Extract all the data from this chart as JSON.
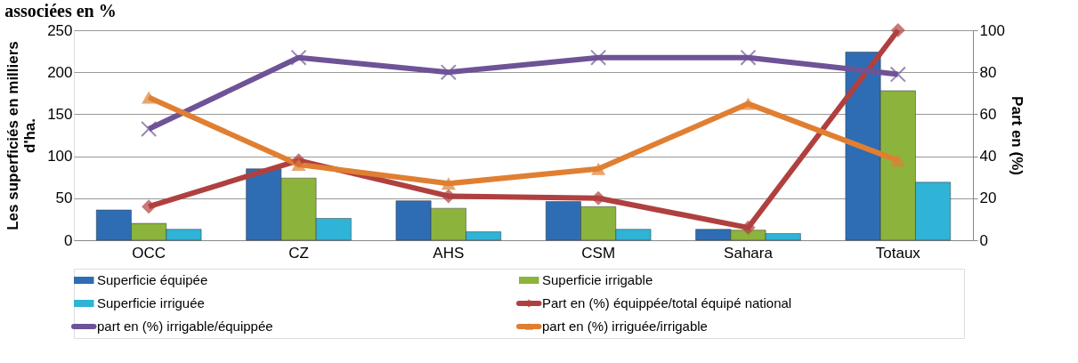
{
  "chart_data": {
    "type": "bar",
    "title": "associées en %",
    "ylabel": "Les superficiés en milliers\nd'ha.",
    "y2label": "Part en (%)",
    "categories": [
      "OCC",
      "CZ",
      "AHS",
      "CSM",
      "Sahara",
      "Totaux"
    ],
    "series": [
      {
        "name": "Superficie équipée",
        "color": "#2e6db4",
        "values": [
          36,
          85,
          47,
          46,
          13,
          224
        ]
      },
      {
        "name": "Superficie irrigable",
        "color": "#8cb43c",
        "values": [
          20,
          74,
          38,
          40,
          12,
          178
        ]
      },
      {
        "name": "Superficie irriguée",
        "color": "#2fb3d6",
        "values": [
          13,
          26,
          10,
          13,
          8,
          69
        ]
      },
      {
        "name": "Part en (%) équippée/total équipé national",
        "type": "line",
        "axis": "y2",
        "marker": "diamond",
        "color": "#b04040",
        "values": [
          16,
          38,
          21,
          20,
          6,
          100
        ]
      },
      {
        "name": "part en (%) irrigable/équippée",
        "type": "line",
        "axis": "y2",
        "marker": "cross",
        "color": "#6e5396",
        "values": [
          53,
          87,
          80,
          87,
          87,
          79
        ]
      },
      {
        "name": "part en (%) irriguée/irrigable",
        "type": "line",
        "axis": "y2",
        "marker": "triangle",
        "color": "#e07f32",
        "values": [
          68,
          36,
          27,
          34,
          65,
          38
        ]
      }
    ],
    "ylim": [
      0,
      250
    ],
    "yticks": [
      0,
      50,
      100,
      150,
      200,
      250
    ],
    "y2lim": [
      0,
      100
    ],
    "y2ticks": [
      0,
      20,
      40,
      60,
      80,
      100
    ],
    "grid": "y",
    "legend": "bottom"
  }
}
